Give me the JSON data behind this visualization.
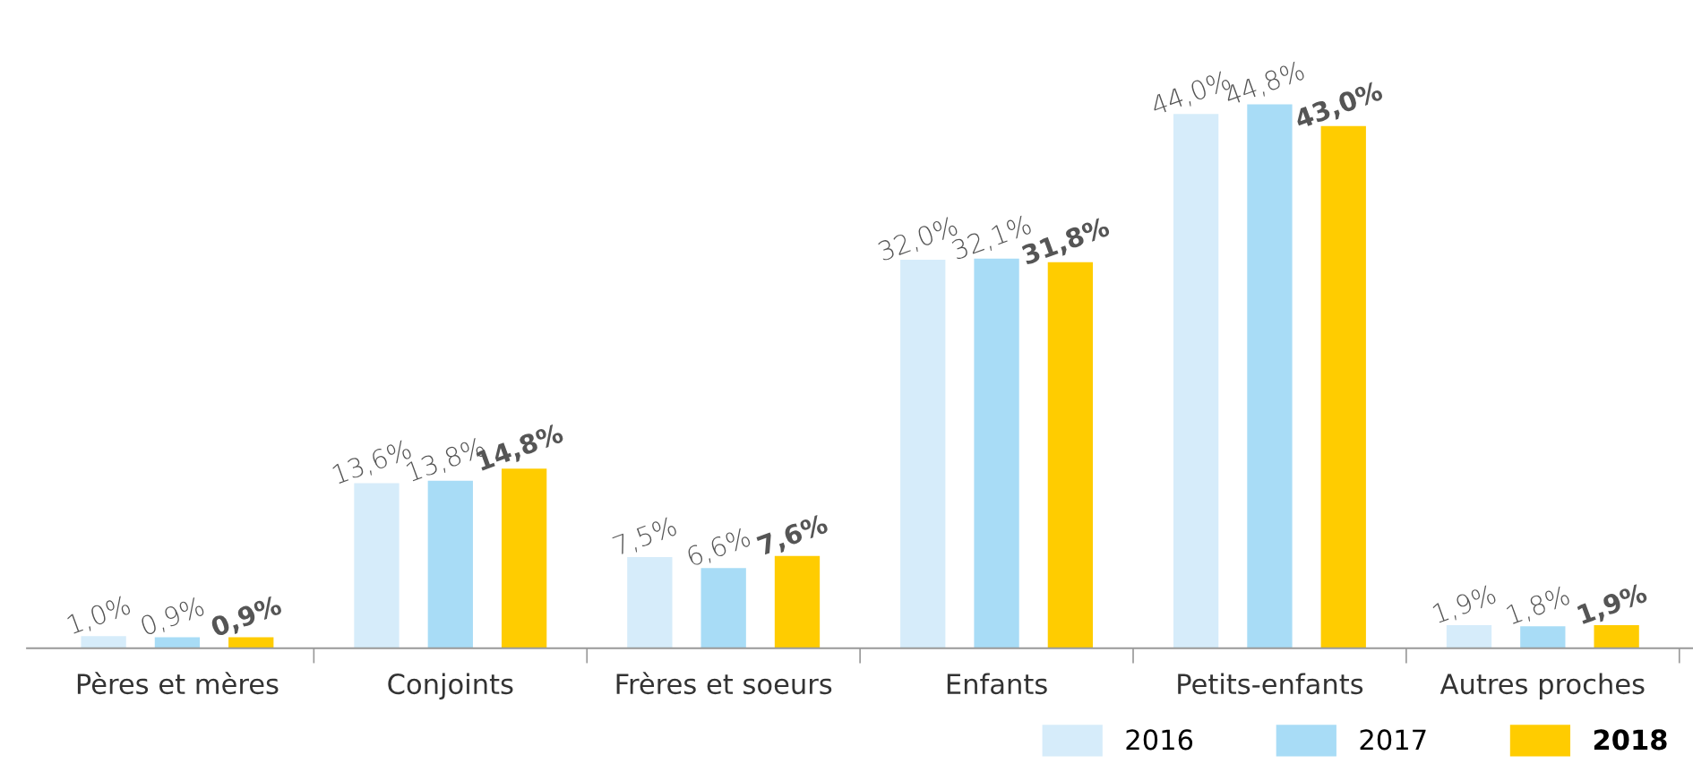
{
  "chart_data": {
    "type": "bar",
    "categories": [
      "Pères et mères",
      "Conjoints",
      "Frères et soeurs",
      "Enfants",
      "Petits-enfants",
      "Autres proches"
    ],
    "series": [
      {
        "name": "2016",
        "color": "#d6ecfa",
        "values": [
          1.0,
          13.6,
          7.5,
          32.0,
          44.0,
          1.9
        ],
        "value_labels": [
          "1,0%",
          "13,6%",
          "7,5%",
          "32,0%",
          "44,0%",
          "1,9%"
        ]
      },
      {
        "name": "2017",
        "color": "#a8dcf6",
        "values": [
          0.9,
          13.8,
          6.6,
          32.1,
          44.8,
          1.8
        ],
        "value_labels": [
          "0,9%",
          "13,8%",
          "6,6%",
          "32,1%",
          "44,8%",
          "1,8%"
        ]
      },
      {
        "name": "2018",
        "color": "#ffcc00",
        "values": [
          0.9,
          14.8,
          7.6,
          31.8,
          43.0,
          1.9
        ],
        "value_labels": [
          "0,9%",
          "14,8%",
          "7,6%",
          "31,8%",
          "43,0%",
          "1,9%"
        ]
      }
    ],
    "legend": "bottom right",
    "grid": false
  }
}
